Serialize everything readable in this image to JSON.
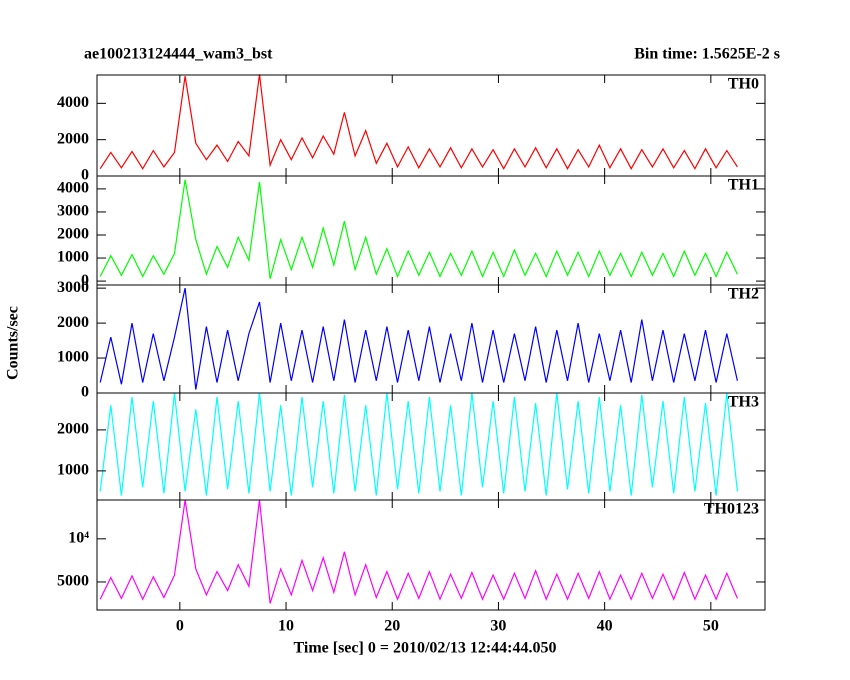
{
  "title": "ae100213124444_wam3_bst",
  "subtitle": "Bin time: 1.5625E-2 s",
  "ylabel": "Counts/sec",
  "xlabel": "Time [sec] 0 = 2010/02/13 12:44:44.050",
  "xlim": [
    -7.8,
    55.1
  ],
  "xticks": [
    0,
    10,
    20,
    30,
    40,
    50
  ],
  "x": [
    -7.5,
    -6.5,
    -5.5,
    -4.5,
    -3.5,
    -2.5,
    -1.5,
    -0.5,
    0.5,
    1.5,
    2.5,
    3.5,
    4.5,
    5.5,
    6.5,
    7.5,
    8.5,
    9.5,
    10.5,
    11.5,
    12.5,
    13.5,
    14.5,
    15.5,
    16.5,
    17.5,
    18.5,
    19.5,
    20.5,
    21.5,
    22.5,
    23.5,
    24.5,
    25.5,
    26.5,
    27.5,
    28.5,
    29.5,
    30.5,
    31.5,
    32.5,
    33.5,
    34.5,
    35.5,
    36.5,
    37.5,
    38.5,
    39.5,
    40.5,
    41.5,
    42.5,
    43.5,
    44.5,
    45.5,
    46.5,
    47.5,
    48.5,
    49.5,
    50.5,
    51.5,
    52.5
  ],
  "chart_data": [
    {
      "type": "line",
      "label": "TH0",
      "color": "#ff0000",
      "ylim": [
        0,
        5560
      ],
      "yticks": [
        0,
        2000,
        4000
      ],
      "values": [
        400,
        1300,
        450,
        1350,
        400,
        1400,
        500,
        1300,
        5500,
        1800,
        900,
        1700,
        800,
        1900,
        1100,
        5600,
        600,
        2000,
        900,
        2100,
        1000,
        2200,
        1200,
        3500,
        1100,
        2500,
        700,
        1800,
        500,
        1600,
        450,
        1500,
        500,
        1550,
        450,
        1500,
        500,
        1450,
        400,
        1500,
        500,
        1550,
        450,
        1500,
        400,
        1450,
        500,
        1700,
        450,
        1500,
        400,
        1450,
        500,
        1500,
        450,
        1400,
        400,
        1500,
        450,
        1400,
        500
      ]
    },
    {
      "type": "line",
      "label": "TH1",
      "color": "#00ff00",
      "ylim": [
        -170,
        4560
      ],
      "yticks": [
        0,
        1000,
        2000,
        3000,
        4000
      ],
      "values": [
        200,
        1100,
        250,
        1150,
        200,
        1100,
        300,
        1200,
        4400,
        1800,
        300,
        1500,
        600,
        1900,
        900,
        4300,
        100,
        1800,
        500,
        1900,
        600,
        2300,
        700,
        2600,
        500,
        1900,
        300,
        1400,
        200,
        1300,
        250,
        1250,
        200,
        1200,
        250,
        1300,
        200,
        1250,
        200,
        1350,
        250,
        1200,
        200,
        1300,
        250,
        1250,
        200,
        1300,
        250,
        1200,
        200,
        1250,
        250,
        1200,
        200,
        1300,
        250,
        1200,
        200,
        1250,
        300
      ]
    },
    {
      "type": "line",
      "label": "TH2",
      "color": "#0000ff",
      "ylim": [
        0,
        3090
      ],
      "yticks": [
        0,
        1000,
        2000,
        3000
      ],
      "values": [
        300,
        1600,
        250,
        2000,
        300,
        1700,
        350,
        1600,
        3000,
        100,
        1900,
        300,
        1800,
        350,
        1700,
        2600,
        300,
        2000,
        350,
        1800,
        300,
        1900,
        350,
        2100,
        300,
        1800,
        350,
        1900,
        300,
        1800,
        350,
        1900,
        300,
        1700,
        350,
        2000,
        300,
        1800,
        300,
        1700,
        350,
        1900,
        300,
        1800,
        350,
        2000,
        300,
        1700,
        350,
        1800,
        300,
        2100,
        350,
        1800,
        300,
        1700,
        350,
        1800,
        300,
        1700,
        350
      ]
    },
    {
      "type": "line",
      "label": "TH3",
      "color": "#00ffff",
      "ylim": [
        290,
        2900
      ],
      "yticks": [
        1000,
        2000
      ],
      "values": [
        500,
        2600,
        400,
        2800,
        600,
        2700,
        450,
        2900,
        500,
        2500,
        400,
        2800,
        550,
        2700,
        450,
        2900,
        500,
        2600,
        400,
        2800,
        600,
        2700,
        450,
        2850,
        500,
        2600,
        400,
        2900,
        550,
        2700,
        450,
        2800,
        500,
        2600,
        400,
        2900,
        600,
        2700,
        450,
        2800,
        500,
        2650,
        400,
        2900,
        550,
        2700,
        450,
        2800,
        500,
        2600,
        400,
        2850,
        600,
        2700,
        450,
        2800,
        500,
        2650,
        400,
        2900,
        500
      ]
    },
    {
      "type": "line",
      "label": "TH0123",
      "color": "#ff00ff",
      "ylim": [
        1750,
        14500
      ],
      "yticks": [
        5000,
        {
          "value": 10000,
          "label": "10⁴"
        }
      ],
      "values": [
        3000,
        5500,
        3100,
        5700,
        3000,
        5600,
        3200,
        5800,
        14500,
        6500,
        3500,
        6200,
        4000,
        7000,
        4500,
        14500,
        2500,
        6500,
        3500,
        7500,
        4000,
        7800,
        3800,
        8500,
        3500,
        7000,
        3200,
        6200,
        3000,
        6000,
        3100,
        6200,
        3000,
        5900,
        3100,
        6100,
        3000,
        5800,
        3000,
        6000,
        3100,
        6300,
        3000,
        5900,
        3000,
        6000,
        3100,
        6200,
        3000,
        5800,
        3000,
        6000,
        3100,
        5900,
        3000,
        6100,
        3000,
        5800,
        3000,
        6000,
        3100
      ]
    }
  ]
}
